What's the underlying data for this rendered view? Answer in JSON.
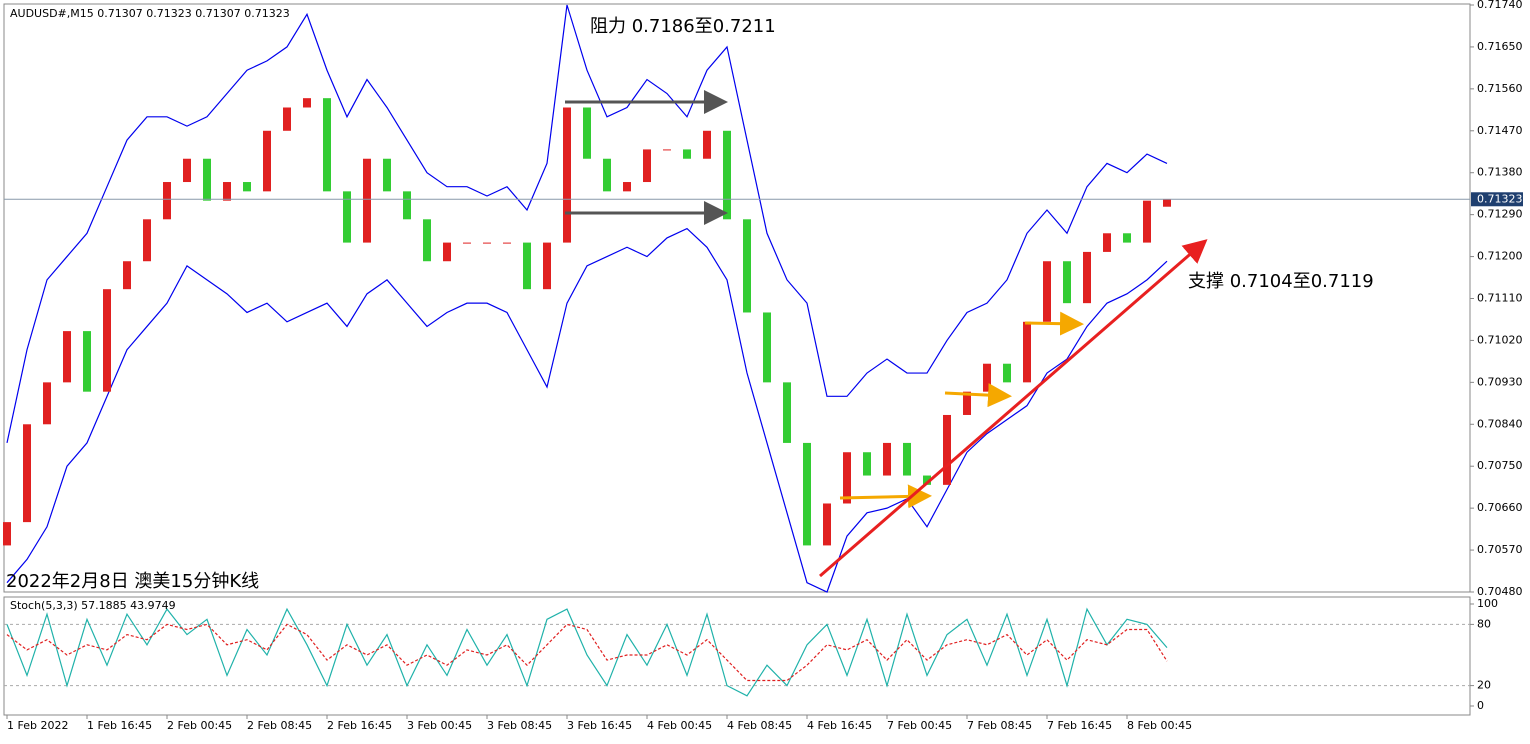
{
  "chart_data": [
    {
      "type": "candlestick",
      "title": "AUDUSD#,M15  0.71307 0.71323 0.71307 0.71323",
      "annotations": [
        "阻力 0.7186至0.7211",
        "支撑 0.7104至0.7119",
        "2022年2月8日 澳美15分钟K线"
      ],
      "x_labels": [
        "1 Feb 2022",
        "1 Feb 16:45",
        "2 Feb 00:45",
        "2 Feb 08:45",
        "2 Feb 16:45",
        "3 Feb 00:45",
        "3 Feb 08:45",
        "3 Feb 16:45",
        "4 Feb 00:45",
        "4 Feb 08:45",
        "4 Feb 16:45",
        "7 Feb 00:45",
        "7 Feb 08:45",
        "7 Feb 16:45",
        "8 Feb 00:45"
      ],
      "open": [
        0.7058,
        0.7063,
        0.7084,
        0.7093,
        0.7104,
        0.7091,
        0.7113,
        0.7119,
        0.7128,
        0.7136,
        0.7141,
        0.7132,
        0.7136,
        0.7134,
        0.7147,
        0.7152,
        0.7154,
        0.7134,
        0.7123,
        0.7141,
        0.7134,
        0.7128,
        0.7119,
        0.7123,
        0.7123,
        0.7123,
        0.7123,
        0.7113,
        0.7123,
        0.7152,
        0.7141,
        0.7134,
        0.7136,
        0.7143,
        0.7143,
        0.7141,
        0.7147,
        0.7128,
        0.7108,
        0.7093,
        0.708,
        0.7058,
        0.7067,
        0.7078,
        0.7073,
        0.708,
        0.7073,
        0.7071,
        0.7086,
        0.7091,
        0.7097,
        0.7093,
        0.7106,
        0.7119,
        0.711,
        0.7121,
        0.7125,
        0.7123,
        0.71307
      ],
      "close": [
        0.7063,
        0.7084,
        0.7093,
        0.7104,
        0.7091,
        0.7113,
        0.7119,
        0.7128,
        0.7136,
        0.7141,
        0.7132,
        0.7136,
        0.7134,
        0.7147,
        0.7152,
        0.7154,
        0.7134,
        0.7123,
        0.7141,
        0.7134,
        0.7128,
        0.7119,
        0.7123,
        0.7123,
        0.7123,
        0.7123,
        0.7113,
        0.7123,
        0.7152,
        0.7141,
        0.7134,
        0.7136,
        0.7143,
        0.7143,
        0.7141,
        0.7147,
        0.7128,
        0.7108,
        0.7093,
        0.708,
        0.7058,
        0.7067,
        0.7078,
        0.7073,
        0.708,
        0.7073,
        0.7071,
        0.7086,
        0.7091,
        0.7097,
        0.7093,
        0.7106,
        0.7119,
        0.711,
        0.7121,
        0.7125,
        0.7123,
        0.7132,
        0.71323
      ],
      "up_color": "#e02020",
      "down_color": "#33cc33",
      "bands": [
        {
          "color": "#0000ee",
          "values": [
            0.708,
            0.71,
            0.7115,
            0.712,
            0.7125,
            0.7135,
            0.7145,
            0.715,
            0.715,
            0.7148,
            0.715,
            0.7155,
            0.716,
            0.7162,
            0.7165,
            0.7172,
            0.716,
            0.715,
            0.7158,
            0.7152,
            0.7145,
            0.7138,
            0.7135,
            0.7135,
            0.7133,
            0.7135,
            0.713,
            0.714,
            0.7174,
            0.716,
            0.715,
            0.7152,
            0.7158,
            0.7155,
            0.715,
            0.716,
            0.7165,
            0.7145,
            0.7125,
            0.7115,
            0.711,
            0.709,
            0.709,
            0.7095,
            0.7098,
            0.7095,
            0.7095,
            0.7102,
            0.7108,
            0.711,
            0.7115,
            0.7125,
            0.713,
            0.7125,
            0.7135,
            0.714,
            0.7138,
            0.7142,
            0.714
          ]
        },
        {
          "color": "#0000ee",
          "values": [
            0.705,
            0.7055,
            0.7062,
            0.7075,
            0.708,
            0.709,
            0.71,
            0.7105,
            0.711,
            0.7118,
            0.7115,
            0.7112,
            0.7108,
            0.711,
            0.7106,
            0.7108,
            0.711,
            0.7105,
            0.7112,
            0.7115,
            0.711,
            0.7105,
            0.7108,
            0.711,
            0.711,
            0.7108,
            0.71,
            0.7092,
            0.711,
            0.7118,
            0.712,
            0.7122,
            0.712,
            0.7124,
            0.7126,
            0.7122,
            0.7115,
            0.7095,
            0.708,
            0.7065,
            0.705,
            0.7048,
            0.706,
            0.7065,
            0.7066,
            0.7068,
            0.7062,
            0.707,
            0.7078,
            0.7082,
            0.7085,
            0.7088,
            0.7095,
            0.7098,
            0.7105,
            0.711,
            0.7112,
            0.7115,
            0.7119
          ]
        }
      ],
      "last_price": 0.71323,
      "ylim": [
        0.7048,
        0.7174
      ],
      "yticks": [
        {
          "value": 0.7174,
          "label": "0.71740"
        },
        {
          "value": 0.7165,
          "label": "0.71650"
        },
        {
          "value": 0.7156,
          "label": "0.71560"
        },
        {
          "value": 0.7147,
          "label": "0.71470"
        },
        {
          "value": 0.7138,
          "label": "0.71380"
        },
        {
          "value": 0.7129,
          "label": "0.71290"
        },
        {
          "value": 0.712,
          "label": "0.71200"
        },
        {
          "value": 0.7111,
          "label": "0.71110"
        },
        {
          "value": 0.7102,
          "label": "0.71020"
        },
        {
          "value": 0.7093,
          "label": "0.70930"
        },
        {
          "value": 0.7084,
          "label": "0.70840"
        },
        {
          "value": 0.7075,
          "label": "0.70750"
        },
        {
          "value": 0.7066,
          "label": "0.70660"
        },
        {
          "value": 0.7057,
          "label": "0.70570"
        },
        {
          "value": 0.7048,
          "label": "0.70480"
        }
      ]
    },
    {
      "type": "line",
      "title": "Stoch(5,3,3) 57.1885 43.9749",
      "series": [
        {
          "color": "#20b2aa",
          "values": [
            80,
            30,
            90,
            20,
            85,
            40,
            90,
            60,
            95,
            70,
            85,
            30,
            75,
            50,
            95,
            60,
            20,
            80,
            40,
            70,
            20,
            60,
            30,
            75,
            40,
            70,
            20,
            85,
            95,
            50,
            20,
            70,
            40,
            80,
            30,
            90,
            20,
            10,
            40,
            20,
            60,
            80,
            30,
            85,
            20,
            90,
            30,
            70,
            85,
            40,
            90,
            30,
            85,
            20,
            95,
            60,
            85,
            80,
            57.1885
          ]
        },
        {
          "color": "#e02020",
          "dashed": true,
          "values": [
            70,
            55,
            65,
            50,
            60,
            55,
            70,
            65,
            80,
            75,
            80,
            60,
            65,
            55,
            80,
            70,
            45,
            60,
            50,
            60,
            40,
            50,
            40,
            55,
            50,
            60,
            40,
            60,
            80,
            75,
            45,
            50,
            50,
            60,
            50,
            65,
            45,
            25,
            25,
            25,
            40,
            60,
            55,
            65,
            45,
            65,
            45,
            60,
            65,
            60,
            70,
            50,
            65,
            45,
            65,
            60,
            75,
            75,
            43.9749
          ]
        }
      ],
      "ylim": [
        0,
        100
      ],
      "yticks": [
        100,
        80,
        20,
        0
      ],
      "levels": [
        80,
        20
      ]
    }
  ]
}
